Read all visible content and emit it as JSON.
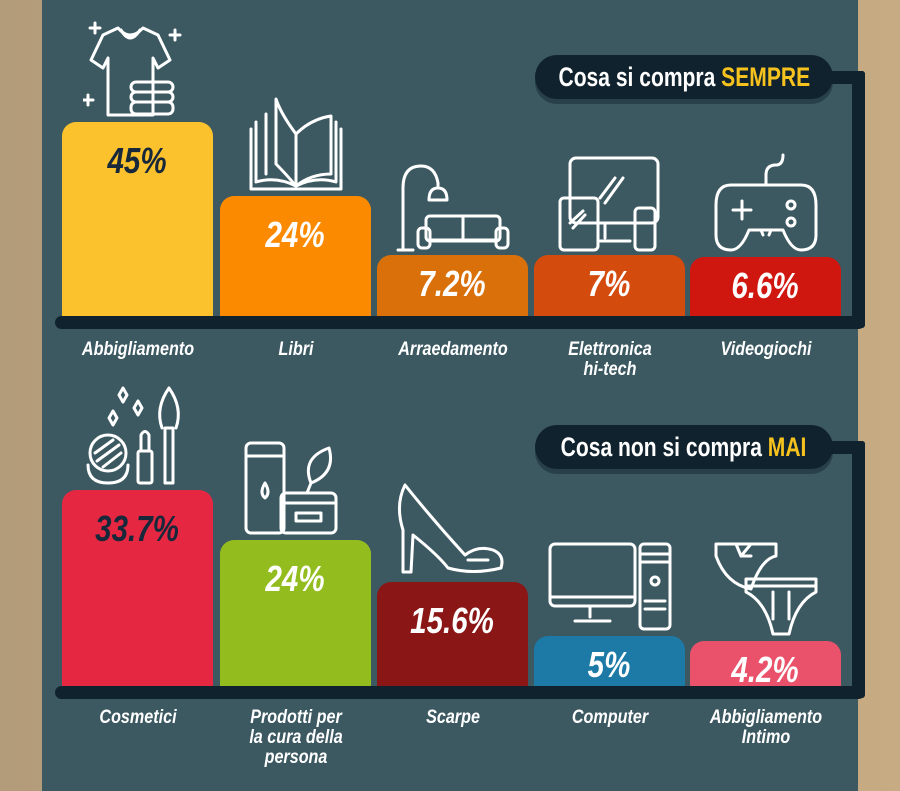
{
  "chart_data": [
    {
      "type": "bar",
      "title_prefix": "Cosa si compra ",
      "title_highlight": "SEMPRE",
      "categories": [
        "Abbigliamento",
        "Libri",
        "Arraedamento",
        "Elettronica hi-tech",
        "Videogiochi"
      ],
      "category_lines": [
        [
          "Abbigliamento"
        ],
        [
          "Libri"
        ],
        [
          "Arraedamento"
        ],
        [
          "Elettronica",
          "hi-tech"
        ],
        [
          "Videogiochi"
        ]
      ],
      "values": [
        45,
        24,
        7.2,
        7,
        6.6
      ],
      "value_labels": [
        "45%",
        "24%",
        "7.2%",
        "7%",
        "6.6%"
      ],
      "colors": [
        "#fbc22d",
        "#fb8a00",
        "#d9700a",
        "#d44b0e",
        "#d0170f"
      ],
      "label_colors": [
        "#16283a",
        "#ffffff",
        "#ffffff",
        "#ffffff",
        "#ffffff"
      ],
      "icons": [
        "tshirt-icon",
        "book-icon",
        "lamp-sofa-icon",
        "devices-icon",
        "gamepad-icon"
      ],
      "unit": "%"
    },
    {
      "type": "bar",
      "title_prefix": "Cosa non si compra ",
      "title_highlight": "MAI",
      "categories": [
        "Cosmetici",
        "Prodotti per la cura della persona",
        "Scarpe",
        "Computer",
        "Abbigliamento Intimo"
      ],
      "category_lines": [
        [
          "Cosmetici"
        ],
        [
          "Prodotti per",
          "la cura della",
          "persona"
        ],
        [
          "Scarpe"
        ],
        [
          "Computer"
        ],
        [
          "Abbigliamento",
          "Intimo"
        ]
      ],
      "values": [
        33.7,
        24,
        15.6,
        5,
        4.2
      ],
      "value_labels": [
        "33.7%",
        "24%",
        "15.6%",
        "5%",
        "4.2%"
      ],
      "colors": [
        "#e62742",
        "#93bd1e",
        "#8a1616",
        "#1d79a6",
        "#e9526a"
      ],
      "label_colors": [
        "#16283a",
        "#ffffff",
        "#ffffff",
        "#ffffff",
        "#ffffff"
      ],
      "icons": [
        "makeup-icon",
        "skincare-icon",
        "high-heel-icon",
        "desktop-computer-icon",
        "underwear-icon"
      ],
      "unit": "%"
    }
  ]
}
